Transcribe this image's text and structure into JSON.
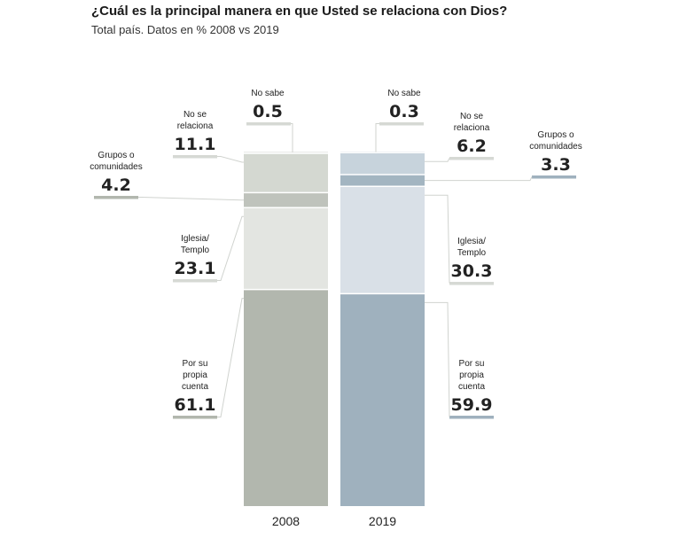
{
  "title": "¿Cuál es la principal manera en que Usted se relaciona con Dios?",
  "subtitle": "Total país. Datos en %  2008 vs 2019",
  "chart_data": {
    "type": "bar",
    "stacked": true,
    "categories": [
      "2008",
      "2019"
    ],
    "series": [
      {
        "name": "Por su propia cuenta",
        "values": [
          61.1,
          59.9
        ],
        "label_lines": [
          "Por su",
          "propia",
          "cuenta"
        ]
      },
      {
        "name": "Iglesia/ Templo",
        "values": [
          23.1,
          30.3
        ],
        "label_lines": [
          "Iglesia/",
          "Templo"
        ]
      },
      {
        "name": "Grupos o comunidades",
        "values": [
          4.2,
          3.3
        ],
        "label_lines": [
          "Grupos o",
          "comunidades"
        ]
      },
      {
        "name": "No se relaciona",
        "values": [
          11.1,
          6.2
        ],
        "label_lines": [
          "No se",
          "relaciona"
        ]
      },
      {
        "name": "No sabe",
        "values": [
          0.5,
          0.3
        ],
        "label_lines": [
          "No sabe"
        ]
      }
    ],
    "colors": {
      "2008": [
        "#b2b7ae",
        "#e3e5e1",
        "#bfc3bc",
        "#d4d8d1",
        "#ebece9"
      ],
      "2019": [
        "#9fb1be",
        "#d9e0e7",
        "#a3b5c1",
        "#c7d3dc",
        "#dde3e8"
      ],
      "accent_2008": "#b2b7ae",
      "accent_2019": "#9fb1be"
    },
    "ylim": [
      0,
      100
    ],
    "legend": "none",
    "grid": false
  }
}
